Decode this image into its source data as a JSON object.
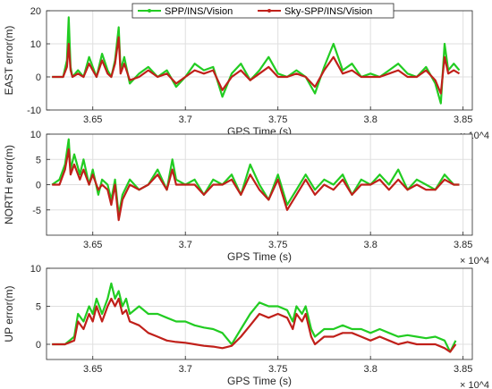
{
  "legend": {
    "entries": [
      {
        "label": "SPP/INS/Vision",
        "color": "#22cc22"
      },
      {
        "label": "Sky-SPP/INS/Vision",
        "color": "#c0201a"
      }
    ]
  },
  "chart_data": [
    {
      "type": "line",
      "title": "",
      "xlabel": "GPS Time (s)",
      "ylabel": "EAST error(m)",
      "x_multiplier": "× 10^4",
      "xlim": [
        3.625,
        3.855
      ],
      "ylim": [
        -10,
        20
      ],
      "xticks": [
        3.65,
        3.7,
        3.75,
        3.8,
        3.85
      ],
      "xtick_labels": [
        "3.65",
        "3.7",
        "3.75",
        "3.8",
        "3.85"
      ],
      "yticks": [
        -10,
        0,
        10,
        20
      ],
      "ytick_labels": [
        "-10",
        "0",
        "10",
        "20"
      ],
      "grid": true,
      "series": [
        {
          "name": "SPP/INS/Vision",
          "color": "#22cc22",
          "x": [
            3.628,
            3.634,
            3.636,
            3.637,
            3.638,
            3.639,
            3.642,
            3.645,
            3.648,
            3.65,
            3.652,
            3.655,
            3.658,
            3.66,
            3.662,
            3.664,
            3.665,
            3.667,
            3.67,
            3.675,
            3.68,
            3.685,
            3.69,
            3.695,
            3.7,
            3.705,
            3.71,
            3.715,
            3.72,
            3.725,
            3.73,
            3.735,
            3.74,
            3.745,
            3.75,
            3.755,
            3.76,
            3.765,
            3.77,
            3.775,
            3.78,
            3.785,
            3.79,
            3.795,
            3.8,
            3.805,
            3.81,
            3.815,
            3.82,
            3.825,
            3.83,
            3.835,
            3.838,
            3.84,
            3.842,
            3.845,
            3.848
          ],
          "y": [
            0,
            0,
            5,
            18,
            3,
            0,
            2,
            0,
            6,
            3,
            0,
            7,
            2,
            0,
            5,
            15,
            2,
            6,
            -2,
            1,
            3,
            0,
            2,
            -3,
            0,
            4,
            2,
            3,
            -6,
            1,
            4,
            -1,
            2,
            6,
            1,
            0,
            2,
            0,
            -5,
            3,
            10,
            2,
            4,
            0,
            1,
            0,
            2,
            4,
            1,
            0,
            3,
            -2,
            -8,
            10,
            2,
            4,
            2
          ]
        },
        {
          "name": "Sky-SPP/INS/Vision",
          "color": "#c0201a",
          "x": [
            3.628,
            3.634,
            3.636,
            3.637,
            3.638,
            3.639,
            3.642,
            3.645,
            3.648,
            3.65,
            3.652,
            3.655,
            3.658,
            3.66,
            3.662,
            3.664,
            3.665,
            3.667,
            3.67,
            3.675,
            3.68,
            3.685,
            3.69,
            3.695,
            3.7,
            3.705,
            3.71,
            3.715,
            3.72,
            3.725,
            3.73,
            3.735,
            3.74,
            3.745,
            3.75,
            3.755,
            3.76,
            3.765,
            3.77,
            3.775,
            3.78,
            3.785,
            3.79,
            3.795,
            3.8,
            3.805,
            3.81,
            3.815,
            3.82,
            3.825,
            3.83,
            3.835,
            3.838,
            3.84,
            3.842,
            3.845,
            3.848
          ],
          "y": [
            0,
            0,
            3,
            10,
            2,
            0,
            1,
            0,
            4,
            2,
            0,
            5,
            1,
            0,
            4,
            12,
            1,
            4,
            -1,
            0,
            2,
            0,
            1,
            -2,
            0,
            2,
            1,
            2,
            -4,
            0,
            2,
            -1,
            1,
            3,
            0,
            0,
            1,
            0,
            -3,
            2,
            6,
            1,
            2,
            0,
            0,
            0,
            1,
            2,
            0,
            0,
            2,
            -1,
            -5,
            6,
            1,
            2,
            1
          ]
        }
      ]
    },
    {
      "type": "line",
      "title": "",
      "xlabel": "GPS Time (s)",
      "ylabel": "NORTH error(m)",
      "x_multiplier": "× 10^4",
      "xlim": [
        3.625,
        3.855
      ],
      "ylim": [
        -10,
        10
      ],
      "xticks": [
        3.65,
        3.7,
        3.75,
        3.8,
        3.85
      ],
      "xtick_labels": [
        "3.65",
        "3.7",
        "3.75",
        "3.8",
        "3.85"
      ],
      "yticks": [
        -5,
        0,
        5,
        10
      ],
      "ytick_labels": [
        "-5",
        "0",
        "5",
        "10"
      ],
      "grid": true,
      "series": [
        {
          "name": "SPP/INS/Vision",
          "color": "#22cc22",
          "x": [
            3.628,
            3.632,
            3.635,
            3.637,
            3.638,
            3.64,
            3.643,
            3.645,
            3.648,
            3.65,
            3.653,
            3.655,
            3.658,
            3.66,
            3.662,
            3.664,
            3.666,
            3.67,
            3.675,
            3.68,
            3.685,
            3.69,
            3.693,
            3.695,
            3.7,
            3.705,
            3.71,
            3.715,
            3.72,
            3.725,
            3.73,
            3.735,
            3.74,
            3.745,
            3.75,
            3.755,
            3.76,
            3.765,
            3.77,
            3.775,
            3.78,
            3.785,
            3.79,
            3.795,
            3.8,
            3.805,
            3.81,
            3.815,
            3.82,
            3.825,
            3.83,
            3.835,
            3.84,
            3.845,
            3.848
          ],
          "y": [
            0,
            1,
            4,
            9,
            3,
            6,
            2,
            5,
            0,
            3,
            -2,
            1,
            0,
            -3,
            1,
            -6,
            -2,
            1,
            -1,
            0,
            3,
            -1,
            5,
            1,
            0,
            1,
            -2,
            1,
            0,
            2,
            -2,
            4,
            0,
            -3,
            2,
            -4,
            -1,
            2,
            -1,
            1,
            0,
            2,
            -2,
            1,
            0,
            2,
            0,
            3,
            -1,
            1,
            0,
            -1,
            2,
            0,
            0
          ]
        },
        {
          "name": "Sky-SPP/INS/Vision",
          "color": "#c0201a",
          "x": [
            3.628,
            3.632,
            3.635,
            3.637,
            3.638,
            3.64,
            3.643,
            3.645,
            3.648,
            3.65,
            3.653,
            3.655,
            3.658,
            3.66,
            3.662,
            3.664,
            3.666,
            3.67,
            3.675,
            3.68,
            3.685,
            3.69,
            3.693,
            3.695,
            3.7,
            3.705,
            3.71,
            3.715,
            3.72,
            3.725,
            3.73,
            3.735,
            3.74,
            3.745,
            3.75,
            3.755,
            3.76,
            3.765,
            3.77,
            3.775,
            3.78,
            3.785,
            3.79,
            3.795,
            3.8,
            3.805,
            3.81,
            3.815,
            3.82,
            3.825,
            3.83,
            3.835,
            3.84,
            3.845,
            3.848
          ],
          "y": [
            0,
            0,
            3,
            7,
            2,
            4,
            1,
            3,
            0,
            2,
            -1,
            0,
            -1,
            -4,
            0,
            -7,
            -3,
            0,
            -1,
            0,
            2,
            -1,
            3,
            0,
            0,
            0,
            -2,
            0,
            0,
            1,
            -2,
            2,
            -1,
            -3,
            1,
            -5,
            -2,
            1,
            -2,
            0,
            -1,
            1,
            -2,
            0,
            0,
            1,
            -1,
            1,
            -1,
            0,
            -1,
            -1,
            1,
            0,
            0
          ]
        }
      ]
    },
    {
      "type": "line",
      "title": "",
      "xlabel": "GPS Time (s)",
      "ylabel": "UP error(m)",
      "x_multiplier": "× 10^4",
      "xlim": [
        3.625,
        3.855
      ],
      "ylim": [
        -2,
        10
      ],
      "xticks": [
        3.65,
        3.7,
        3.75,
        3.8,
        3.85
      ],
      "xtick_labels": [
        "3.65",
        "3.7",
        "3.75",
        "3.8",
        "3.85"
      ],
      "yticks": [
        0,
        5,
        10
      ],
      "ytick_labels": [
        "0",
        "5",
        "10"
      ],
      "grid": true,
      "series": [
        {
          "name": "SPP/INS/Vision",
          "color": "#22cc22",
          "x": [
            3.628,
            3.635,
            3.64,
            3.642,
            3.645,
            3.648,
            3.65,
            3.652,
            3.655,
            3.658,
            3.66,
            3.662,
            3.664,
            3.666,
            3.668,
            3.67,
            3.675,
            3.68,
            3.685,
            3.69,
            3.695,
            3.7,
            3.705,
            3.71,
            3.715,
            3.72,
            3.725,
            3.73,
            3.735,
            3.74,
            3.745,
            3.75,
            3.755,
            3.758,
            3.76,
            3.763,
            3.765,
            3.768,
            3.77,
            3.775,
            3.78,
            3.785,
            3.79,
            3.795,
            3.8,
            3.805,
            3.81,
            3.815,
            3.82,
            3.825,
            3.83,
            3.835,
            3.84,
            3.843,
            3.846
          ],
          "y": [
            0,
            0,
            1,
            4,
            3,
            5,
            4,
            6,
            4,
            6,
            8,
            6,
            7,
            5,
            6,
            4,
            5,
            4,
            4,
            3.5,
            3,
            3,
            2.5,
            2.2,
            2,
            1.5,
            0,
            2,
            4,
            5.5,
            5,
            5,
            4.5,
            3,
            5,
            4,
            5,
            2,
            1,
            2,
            2,
            2.5,
            2,
            2,
            1.5,
            2,
            1.5,
            1,
            1.2,
            1,
            0.8,
            1,
            0.5,
            -1,
            0.5
          ]
        },
        {
          "name": "Sky-SPP/INS/Vision",
          "color": "#c0201a",
          "x": [
            3.628,
            3.635,
            3.64,
            3.642,
            3.645,
            3.648,
            3.65,
            3.652,
            3.655,
            3.658,
            3.66,
            3.662,
            3.664,
            3.666,
            3.668,
            3.67,
            3.675,
            3.68,
            3.685,
            3.69,
            3.695,
            3.7,
            3.705,
            3.71,
            3.715,
            3.72,
            3.725,
            3.73,
            3.735,
            3.74,
            3.745,
            3.75,
            3.755,
            3.758,
            3.76,
            3.763,
            3.765,
            3.768,
            3.77,
            3.775,
            3.78,
            3.785,
            3.79,
            3.795,
            3.8,
            3.805,
            3.81,
            3.815,
            3.82,
            3.825,
            3.83,
            3.835,
            3.84,
            3.843,
            3.846
          ],
          "y": [
            0,
            0,
            0.5,
            3,
            2,
            4,
            3,
            5,
            3,
            5,
            6,
            5,
            6,
            4,
            4.5,
            3,
            2.5,
            1.5,
            1,
            0.5,
            0.3,
            0.2,
            0,
            -0.2,
            -0.3,
            -0.5,
            -0.2,
            1,
            2.5,
            4,
            3.5,
            4,
            3.5,
            2,
            4,
            3,
            4,
            1,
            0,
            1,
            1,
            1.5,
            1.5,
            1,
            0.5,
            1,
            0.5,
            0,
            0.3,
            0,
            0,
            0,
            -0.5,
            -1,
            0
          ]
        }
      ]
    }
  ]
}
